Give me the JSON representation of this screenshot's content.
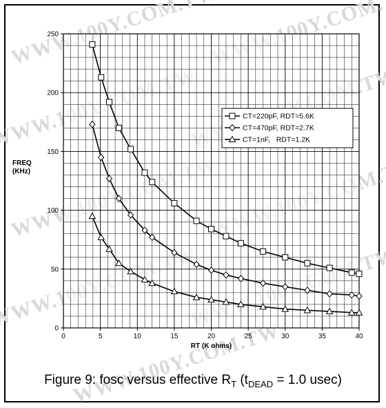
{
  "watermark": {
    "text": "WWW.100Y.COM.TW"
  },
  "caption": {
    "prefix": "Figure 9: fosc versus effective R",
    "r_sub": "T",
    "mid": " (t",
    "t_sub": "DEAD",
    "suffix": " = 1.0 usec)"
  },
  "chart_data": {
    "type": "line",
    "title": "",
    "xlabel": "RT (K ohms)",
    "ylabel": [
      "FREQ",
      "(KHz)"
    ],
    "xlim": [
      0,
      40
    ],
    "ylim": [
      0,
      250
    ],
    "x_major_ticks": [
      0,
      5,
      10,
      15,
      20,
      25,
      30,
      35,
      40
    ],
    "y_major_ticks": [
      0,
      50,
      100,
      150,
      200,
      250
    ],
    "x_minor_step": 1,
    "y_minor_step": 10,
    "grid": true,
    "legend_position": "right",
    "series": [
      {
        "name": "CT=220pF, RDT=5.6K",
        "marker": "square",
        "x": [
          3.9,
          5.1,
          6.2,
          7.5,
          9.1,
          11,
          12,
          15,
          18,
          20,
          22,
          24,
          27,
          30,
          33,
          36,
          39,
          40
        ],
        "y": [
          241,
          213,
          192,
          170,
          152,
          132,
          124,
          106,
          91,
          84,
          78,
          72,
          65,
          60,
          55,
          51,
          47,
          46
        ]
      },
      {
        "name": "CT=470pF, RDT=2.7K",
        "marker": "diamond",
        "x": [
          3.9,
          5.1,
          6.2,
          7.5,
          9.1,
          11,
          12,
          15,
          18,
          20,
          22,
          24,
          27,
          30,
          33,
          36,
          39,
          40
        ],
        "y": [
          173,
          145,
          127,
          110,
          96,
          83,
          77,
          64,
          54,
          49,
          45,
          42,
          38,
          35,
          32,
          29,
          28,
          27
        ]
      },
      {
        "name": "CT=1nF,   RDT=1.2K",
        "marker": "triangle",
        "x": [
          3.9,
          5.1,
          6.2,
          7.5,
          9.1,
          11,
          12,
          15,
          18,
          20,
          22,
          24,
          27,
          30,
          33,
          36,
          39,
          40
        ],
        "y": [
          95,
          77,
          67,
          55,
          48,
          41,
          38,
          31,
          26,
          24,
          22,
          20,
          18,
          16,
          15,
          14,
          13,
          13
        ]
      }
    ]
  }
}
